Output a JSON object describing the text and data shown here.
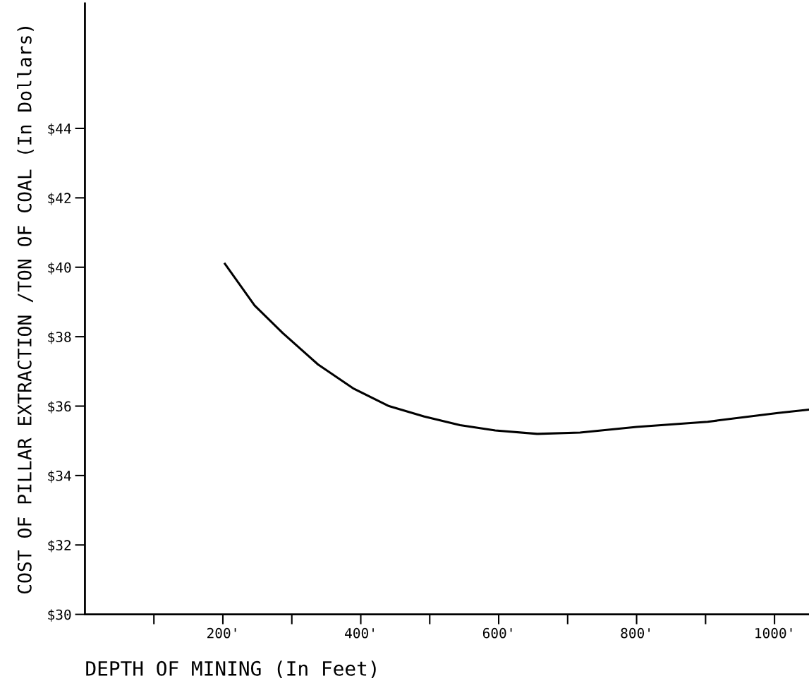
{
  "chart_data": {
    "type": "line",
    "xlabel": "DEPTH OF MINING (In Feet)",
    "ylabel": "COST OF PILLAR EXTRACTION /TON OF COAL (In Dollars)",
    "x": [
      203,
      246,
      287,
      338,
      390,
      441,
      492,
      544,
      595,
      656,
      718,
      800,
      903,
      1005,
      1050
    ],
    "series": [
      {
        "color": "#000000",
        "values": [
          40.1,
          38.9,
          38.1,
          37.2,
          36.5,
          36.0,
          35.7,
          35.45,
          35.3,
          35.2,
          35.24,
          35.4,
          35.55,
          35.8,
          35.9
        ]
      }
    ],
    "xlim": [
      0,
      1050
    ],
    "ylim": [
      30,
      47.6
    ],
    "xticks": [
      {
        "value": 100,
        "label": null
      },
      {
        "value": 200,
        "label": "200'"
      },
      {
        "value": 300,
        "label": null
      },
      {
        "value": 400,
        "label": "400'"
      },
      {
        "value": 500,
        "label": null
      },
      {
        "value": 600,
        "label": "600'"
      },
      {
        "value": 700,
        "label": null
      },
      {
        "value": 800,
        "label": "800'"
      },
      {
        "value": 900,
        "label": null
      },
      {
        "value": 1000,
        "label": "1000'"
      }
    ],
    "yticks": [
      {
        "value": 30,
        "label": "$30"
      },
      {
        "value": 32,
        "label": "$32"
      },
      {
        "value": 34,
        "label": "$34"
      },
      {
        "value": 36,
        "label": "$36"
      },
      {
        "value": 38,
        "label": "$38"
      },
      {
        "value": 40,
        "label": "$40"
      },
      {
        "value": 42,
        "label": "$42"
      },
      {
        "value": 44,
        "label": "$44"
      }
    ],
    "grid": false,
    "legend": false
  }
}
